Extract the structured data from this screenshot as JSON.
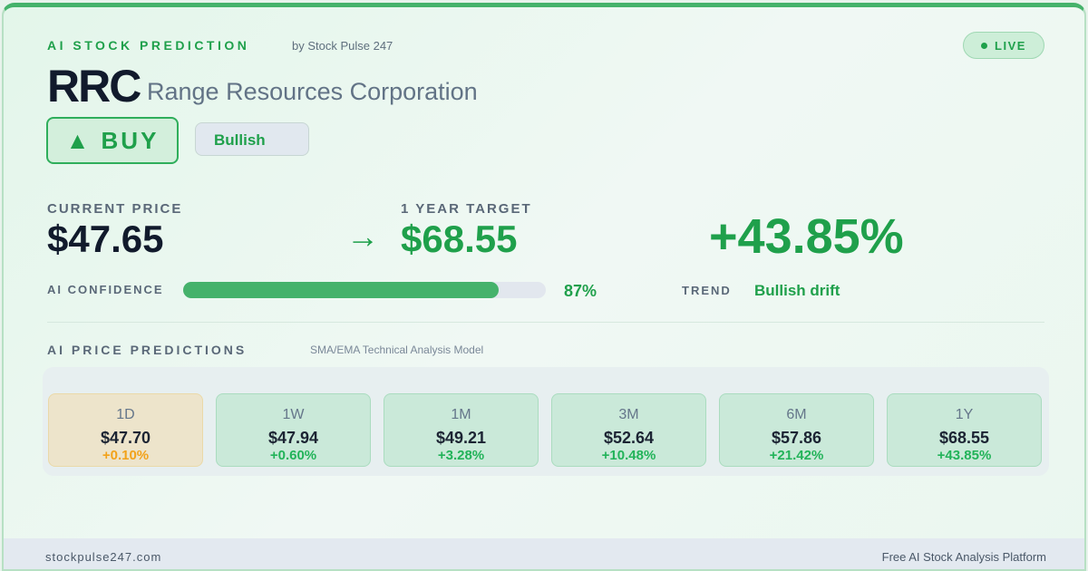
{
  "header": {
    "brand": "AI STOCK PREDICTION",
    "by": "by Stock Pulse 247",
    "live": "LIVE",
    "ticker": "RRC",
    "company": "Range Resources Corporation",
    "signal": "▲ BUY",
    "sentiment": "Bullish"
  },
  "price": {
    "current_label": "CURRENT PRICE",
    "current": "$47.65",
    "arrow": "→",
    "target_label": "1 YEAR TARGET",
    "target": "$68.55",
    "change": "+43.85%"
  },
  "confidence": {
    "label": "AI CONFIDENCE",
    "value_text": "87%",
    "value": 87,
    "trend_label": "TREND",
    "trend": "Bullish drift"
  },
  "predictions": {
    "title": "AI PRICE PREDICTIONS",
    "model": "SMA/EMA Technical Analysis Model",
    "items": [
      {
        "period": "1D",
        "price": "$47.70",
        "change": "+0.10%",
        "status": "neutral"
      },
      {
        "period": "1W",
        "price": "$47.94",
        "change": "+0.60%",
        "status": "up"
      },
      {
        "period": "1M",
        "price": "$49.21",
        "change": "+3.28%",
        "status": "up"
      },
      {
        "period": "3M",
        "price": "$52.64",
        "change": "+10.48%",
        "status": "up"
      },
      {
        "period": "6M",
        "price": "$57.86",
        "change": "+21.42%",
        "status": "up"
      },
      {
        "period": "1Y",
        "price": "$68.55",
        "change": "+43.85%",
        "status": "up"
      }
    ]
  },
  "footer": {
    "site": "stockpulse247.com",
    "tagline": "Free AI Stock Analysis Platform"
  },
  "colors": {
    "accent": "#1fa04b",
    "neutral": "#f2a21a"
  }
}
